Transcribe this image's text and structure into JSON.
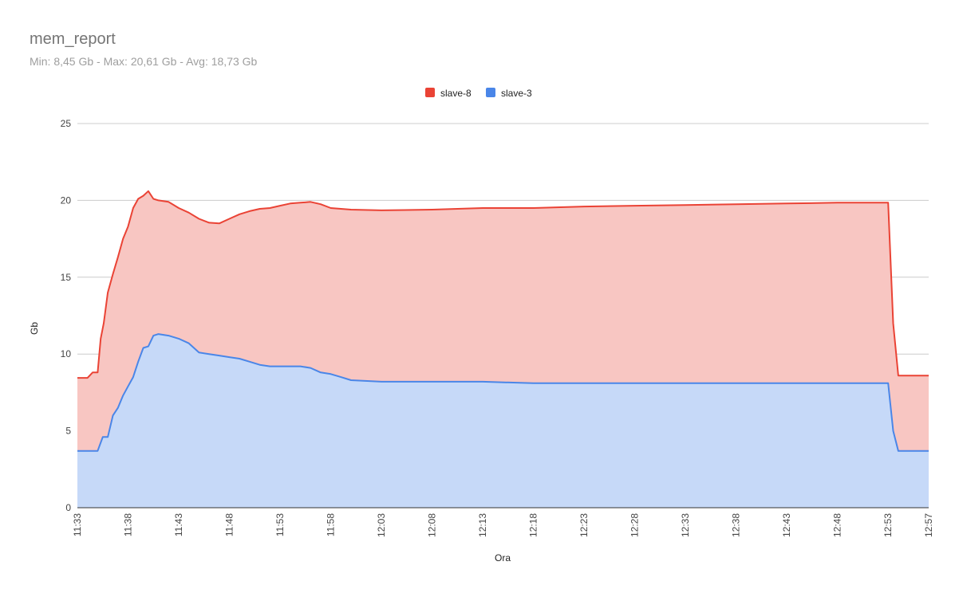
{
  "title": "mem_report",
  "subtitle": "Min: 8,45 Gb - Max: 20,61 Gb - Avg: 18,73 Gb",
  "colors": {
    "slave8_line": "#ea4335",
    "slave8_fill": "#f8c6c2",
    "slave3_line": "#4a86e8",
    "slave3_fill": "#c6d9f8",
    "grid": "#cccccc"
  },
  "chart_data": {
    "type": "area",
    "stacked": true,
    "title": "mem_report",
    "subtitle": "Min: 8,45 Gb - Max: 20,61 Gb - Avg: 18,73 Gb",
    "xlabel": "Ora",
    "ylabel": "Gb",
    "ylim": [
      0,
      25
    ],
    "yticks": [
      "0",
      "5",
      "10",
      "15",
      "20",
      "25"
    ],
    "xlim": [
      "11:33",
      "12:57"
    ],
    "xticks": [
      "11:33",
      "11:38",
      "11:43",
      "11:48",
      "11:53",
      "11:58",
      "12:03",
      "12:08",
      "12:13",
      "12:18",
      "12:23",
      "12:28",
      "12:33",
      "12:38",
      "12:43",
      "12:48",
      "12:53",
      "12:57"
    ],
    "legend": {
      "position": "top",
      "entries": [
        "slave-8",
        "slave-3"
      ]
    },
    "grid": true,
    "series": [
      {
        "name": "slave-8",
        "points": [
          [
            "11:33",
            8.45
          ],
          [
            "11:34",
            8.45
          ],
          [
            "11:34.5",
            8.8
          ],
          [
            "11:35",
            8.8
          ],
          [
            "11:35.3",
            11.0
          ],
          [
            "11:35.6",
            12.0
          ],
          [
            "11:36",
            14.0
          ],
          [
            "11:36.5",
            15.2
          ],
          [
            "11:37",
            16.3
          ],
          [
            "11:37.5",
            17.5
          ],
          [
            "11:38",
            18.3
          ],
          [
            "11:38.5",
            19.5
          ],
          [
            "11:39",
            20.1
          ],
          [
            "11:39.5",
            20.3
          ],
          [
            "11:40",
            20.6
          ],
          [
            "11:40.5",
            20.1
          ],
          [
            "11:41",
            20.0
          ],
          [
            "11:42",
            19.9
          ],
          [
            "11:43",
            19.5
          ],
          [
            "11:44",
            19.2
          ],
          [
            "11:45",
            18.8
          ],
          [
            "11:46",
            18.55
          ],
          [
            "11:47",
            18.5
          ],
          [
            "11:48",
            18.8
          ],
          [
            "11:49",
            19.1
          ],
          [
            "11:50",
            19.3
          ],
          [
            "11:51",
            19.45
          ],
          [
            "11:52",
            19.5
          ],
          [
            "11:53",
            19.65
          ],
          [
            "11:54",
            19.8
          ],
          [
            "11:55",
            19.85
          ],
          [
            "11:56",
            19.9
          ],
          [
            "11:57",
            19.75
          ],
          [
            "11:58",
            19.5
          ],
          [
            "12:00",
            19.4
          ],
          [
            "12:03",
            19.35
          ],
          [
            "12:08",
            19.4
          ],
          [
            "12:13",
            19.5
          ],
          [
            "12:18",
            19.5
          ],
          [
            "12:23",
            19.6
          ],
          [
            "12:28",
            19.65
          ],
          [
            "12:33",
            19.7
          ],
          [
            "12:38",
            19.75
          ],
          [
            "12:43",
            19.8
          ],
          [
            "12:48",
            19.85
          ],
          [
            "12:53",
            19.85
          ],
          [
            "12:53.5",
            12.0
          ],
          [
            "12:54",
            8.6
          ],
          [
            "12:57",
            8.6
          ]
        ]
      },
      {
        "name": "slave-3",
        "points": [
          [
            "11:33",
            3.7
          ],
          [
            "11:35",
            3.7
          ],
          [
            "11:35.5",
            4.6
          ],
          [
            "11:36",
            4.6
          ],
          [
            "11:36.5",
            6.0
          ],
          [
            "11:37",
            6.5
          ],
          [
            "11:37.5",
            7.3
          ],
          [
            "11:38",
            7.9
          ],
          [
            "11:38.5",
            8.5
          ],
          [
            "11:39",
            9.5
          ],
          [
            "11:39.5",
            10.4
          ],
          [
            "11:40",
            10.5
          ],
          [
            "11:40.5",
            11.2
          ],
          [
            "11:41",
            11.3
          ],
          [
            "11:42",
            11.2
          ],
          [
            "11:43",
            11.0
          ],
          [
            "11:44",
            10.7
          ],
          [
            "11:45",
            10.1
          ],
          [
            "11:46",
            10.0
          ],
          [
            "11:47",
            9.9
          ],
          [
            "11:48",
            9.8
          ],
          [
            "11:49",
            9.7
          ],
          [
            "11:50",
            9.5
          ],
          [
            "11:51",
            9.3
          ],
          [
            "11:52",
            9.2
          ],
          [
            "11:53",
            9.2
          ],
          [
            "11:55",
            9.2
          ],
          [
            "11:56",
            9.1
          ],
          [
            "11:57",
            8.8
          ],
          [
            "11:58",
            8.7
          ],
          [
            "11:59",
            8.5
          ],
          [
            "12:00",
            8.3
          ],
          [
            "12:03",
            8.2
          ],
          [
            "12:08",
            8.2
          ],
          [
            "12:13",
            8.2
          ],
          [
            "12:18",
            8.1
          ],
          [
            "12:23",
            8.1
          ],
          [
            "12:28",
            8.1
          ],
          [
            "12:33",
            8.1
          ],
          [
            "12:38",
            8.1
          ],
          [
            "12:43",
            8.1
          ],
          [
            "12:48",
            8.1
          ],
          [
            "12:53",
            8.1
          ],
          [
            "12:53.5",
            5.0
          ],
          [
            "12:54",
            3.7
          ],
          [
            "12:57",
            3.7
          ]
        ]
      }
    ]
  }
}
